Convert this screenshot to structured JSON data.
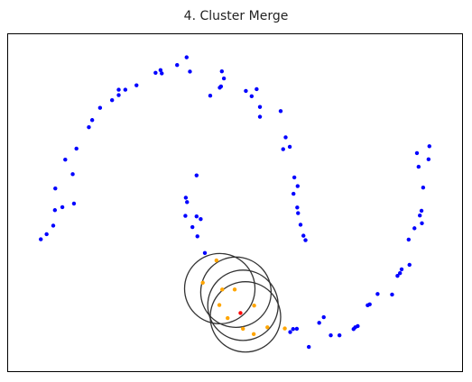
{
  "chart_data": {
    "type": "scatter",
    "title": "4. Cluster Merge",
    "xlabel": "",
    "ylabel": "",
    "xlim": [
      0,
      1
    ],
    "ylim": [
      0,
      1
    ],
    "grid": false,
    "axis_ticks": false,
    "colors": {
      "unassigned": "#0000ff",
      "cluster": "#ffa500",
      "seed": "#ff0000",
      "circle": "#333333"
    },
    "series": [
      {
        "role": "unassigned",
        "points": [
          [
            0.031,
            0.377
          ],
          [
            0.045,
            0.394
          ],
          [
            0.061,
            0.423
          ],
          [
            0.083,
            0.485
          ],
          [
            0.065,
            0.475
          ],
          [
            0.111,
            0.497
          ],
          [
            0.066,
            0.548
          ],
          [
            0.108,
            0.596
          ],
          [
            0.09,
            0.645
          ],
          [
            0.117,
            0.682
          ],
          [
            0.147,
            0.754
          ],
          [
            0.155,
            0.778
          ],
          [
            0.174,
            0.819
          ],
          [
            0.203,
            0.845
          ],
          [
            0.219,
            0.862
          ],
          [
            0.219,
            0.88
          ],
          [
            0.235,
            0.88
          ],
          [
            0.262,
            0.895
          ],
          [
            0.308,
            0.937
          ],
          [
            0.323,
            0.935
          ],
          [
            0.32,
            0.946
          ],
          [
            0.36,
            0.963
          ],
          [
            0.383,
            0.989
          ],
          [
            0.391,
            0.941
          ],
          [
            0.44,
            0.86
          ],
          [
            0.463,
            0.887
          ],
          [
            0.466,
            0.891
          ],
          [
            0.473,
            0.918
          ],
          [
            0.468,
            0.942
          ],
          [
            0.526,
            0.876
          ],
          [
            0.54,
            0.858
          ],
          [
            0.552,
            0.882
          ],
          [
            0.56,
            0.822
          ],
          [
            0.56,
            0.789
          ],
          [
            0.61,
            0.808
          ],
          [
            0.622,
            0.72
          ],
          [
            0.616,
            0.68
          ],
          [
            0.632,
            0.688
          ],
          [
            0.643,
            0.585
          ],
          [
            0.651,
            0.556
          ],
          [
            0.641,
            0.53
          ],
          [
            0.65,
            0.484
          ],
          [
            0.652,
            0.465
          ],
          [
            0.658,
            0.426
          ],
          [
            0.665,
            0.389
          ],
          [
            0.67,
            0.374
          ],
          [
            0.407,
            0.592
          ],
          [
            0.381,
            0.517
          ],
          [
            0.384,
            0.502
          ],
          [
            0.38,
            0.456
          ],
          [
            0.407,
            0.454
          ],
          [
            0.417,
            0.445
          ],
          [
            0.397,
            0.418
          ],
          [
            0.409,
            0.387
          ],
          [
            0.427,
            0.331
          ],
          [
            0.633,
            0.065
          ],
          [
            0.64,
            0.075
          ],
          [
            0.649,
            0.076
          ],
          [
            0.678,
            0.015
          ],
          [
            0.703,
            0.096
          ],
          [
            0.714,
            0.115
          ],
          [
            0.731,
            0.054
          ],
          [
            0.752,
            0.054
          ],
          [
            0.786,
            0.075
          ],
          [
            0.79,
            0.081
          ],
          [
            0.796,
            0.085
          ],
          [
            0.82,
            0.155
          ],
          [
            0.825,
            0.158
          ],
          [
            0.844,
            0.193
          ],
          [
            0.879,
            0.191
          ],
          [
            0.892,
            0.254
          ],
          [
            0.902,
            0.276
          ],
          [
            0.898,
            0.263
          ],
          [
            0.921,
            0.291
          ],
          [
            0.919,
            0.376
          ],
          [
            0.933,
            0.414
          ],
          [
            0.946,
            0.457
          ],
          [
            0.951,
            0.431
          ],
          [
            0.95,
            0.473
          ],
          [
            0.954,
            0.551
          ],
          [
            0.943,
            0.621
          ],
          [
            0.939,
            0.667
          ],
          [
            0.967,
            0.646
          ],
          [
            0.969,
            0.69
          ]
        ]
      },
      {
        "role": "cluster",
        "points": [
          [
            0.455,
            0.306
          ],
          [
            0.422,
            0.231
          ],
          [
            0.469,
            0.208
          ],
          [
            0.499,
            0.208
          ],
          [
            0.462,
            0.156
          ],
          [
            0.482,
            0.112
          ],
          [
            0.519,
            0.076
          ],
          [
            0.546,
            0.154
          ],
          [
            0.578,
            0.081
          ],
          [
            0.545,
            0.058
          ],
          [
            0.62,
            0.077
          ]
        ]
      },
      {
        "role": "seed",
        "points": [
          [
            0.513,
            0.129
          ]
        ]
      }
    ],
    "circles": [
      {
        "center": [
          0.463,
          0.211
        ],
        "radius": 0.085
      },
      {
        "center": [
          0.502,
          0.199
        ],
        "radius": 0.085
      },
      {
        "center": [
          0.519,
          0.155
        ],
        "radius": 0.085
      },
      {
        "center": [
          0.525,
          0.116
        ],
        "radius": 0.085
      }
    ]
  }
}
